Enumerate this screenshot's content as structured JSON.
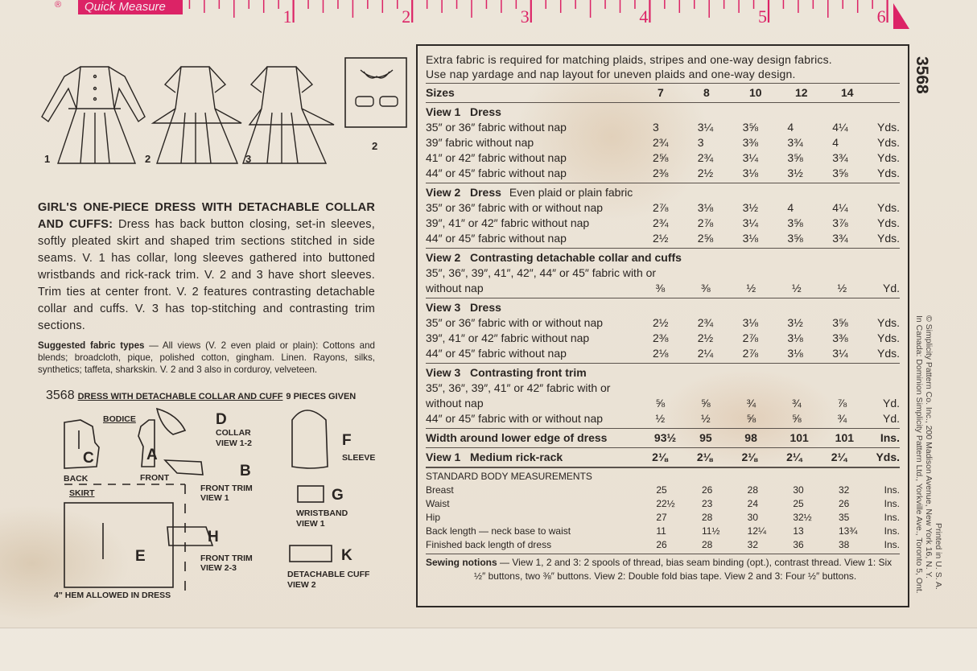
{
  "ruler": {
    "label": "Quick Measure",
    "registered": "®",
    "inches": [
      "1",
      "2",
      "3",
      "4",
      "5",
      "6"
    ],
    "color": "#dc2366"
  },
  "views": {
    "numbers": [
      "1",
      "2",
      "3"
    ],
    "inset_number": "2"
  },
  "description": {
    "title": "GIRL'S ONE-PIECE DRESS WITH DETACHABLE COLLAR AND CUFFS:",
    "body": "Dress has back button closing, set-in sleeves, softly pleated skirt and shaped trim sections stitched in side seams. V. 1 has collar, long sleeves gathered into buttoned wristbands and rick-rack trim. V. 2 and 3 have short sleeves. Trim ties at center front. V. 2 features contrasting detachable collar and cuffs. V. 3 has top-stitching and contrasting trim sections."
  },
  "fabrics": {
    "title": "Suggested fabric types",
    "body": "— All views (V. 2 even plaid or plain): Cottons and blends; broadcloth, pique, polished cotton, gingham. Linen. Rayons, silks, synthetics; taffeta, sharkskin. V. 2 and 3 also in corduroy, velveteen."
  },
  "pieces": {
    "number": "3568",
    "title": "DRESS WITH DETACHABLE COLLAR AND CUFF",
    "count": "9 PIECES GIVEN",
    "bodice": "BODICE",
    "back": "BACK",
    "front": "FRONT",
    "skirt": "SKIRT",
    "hem": "4\" HEM ALLOWED IN DRESS",
    "items": [
      {
        "letter": "C"
      },
      {
        "letter": "A"
      },
      {
        "letter": "E"
      },
      {
        "letter": "D",
        "name": "COLLAR",
        "view": "VIEW 1-2"
      },
      {
        "letter": "B",
        "name": "FRONT TRIM",
        "view": "VIEW 1"
      },
      {
        "letter": "H",
        "name": "FRONT TRIM",
        "view": "VIEW 2-3"
      },
      {
        "letter": "F",
        "name": "SLEEVE"
      },
      {
        "letter": "G",
        "name": "WRISTBAND",
        "view": "VIEW 1"
      },
      {
        "letter": "K",
        "name": "DETACHABLE CUFF",
        "view": "VIEW 2"
      }
    ]
  },
  "chart_header": {
    "line1": "Extra fabric is required for matching plaids, stripes and one-way design fabrics.",
    "line2": "Use nap yardage and nap layout for uneven plaids and one-way design."
  },
  "table": {
    "sizes_label": "Sizes",
    "sizes": [
      "7",
      "8",
      "10",
      "12",
      "14"
    ],
    "sections": [
      {
        "title": "View 1   Dress",
        "rows": [
          {
            "label": "35″ or 36″ fabric without nap",
            "values": [
              "3",
              "3¼",
              "3⅝",
              "4",
              "4¼"
            ],
            "unit": "Yds."
          },
          {
            "label": "39″ fabric without nap",
            "values": [
              "2¾",
              "3",
              "3⅜",
              "3¾",
              "4"
            ],
            "unit": "Yds."
          },
          {
            "label": "41″ or 42″ fabric without nap",
            "values": [
              "2⅝",
              "2¾",
              "3¼",
              "3⅝",
              "3¾"
            ],
            "unit": "Yds."
          },
          {
            "label": "44″ or 45″ fabric without nap",
            "values": [
              "2⅜",
              "2½",
              "3⅛",
              "3½",
              "3⅝"
            ],
            "unit": "Yds."
          }
        ]
      },
      {
        "title": "View 2   Dress",
        "subtitle": "Even plaid or plain fabric",
        "rows": [
          {
            "label": "35″ or 36″ fabric with or without nap",
            "values": [
              "2⅞",
              "3⅛",
              "3½",
              "4",
              "4¼"
            ],
            "unit": "Yds."
          },
          {
            "label": "39″, 41″ or 42″ fabric without nap",
            "values": [
              "2¾",
              "2⅞",
              "3¼",
              "3⅝",
              "3⅞"
            ],
            "unit": "Yds."
          },
          {
            "label": "44″ or 45″ fabric without nap",
            "values": [
              "2½",
              "2⅝",
              "3⅛",
              "3⅝",
              "3¾"
            ],
            "unit": "Yds."
          }
        ]
      },
      {
        "title": "View 2   Contrasting detachable collar and cuffs",
        "pre": "35″, 36″, 39″, 41″, 42″, 44″ or 45″ fabric with or",
        "rows": [
          {
            "label": "without nap",
            "values": [
              "⅜",
              "⅜",
              "½",
              "½",
              "½"
            ],
            "unit": "Yd."
          }
        ]
      },
      {
        "title": "View 3   Dress",
        "rows": [
          {
            "label": "35″ or 36″ fabric with or without nap",
            "values": [
              "2½",
              "2¾",
              "3⅛",
              "3½",
              "3⅝"
            ],
            "unit": "Yds."
          },
          {
            "label": "39″, 41″ or 42″ fabric without nap",
            "values": [
              "2⅜",
              "2½",
              "2⅞",
              "3⅛",
              "3⅜"
            ],
            "unit": "Yds."
          },
          {
            "label": "44″ or 45″ fabric without nap",
            "values": [
              "2⅛",
              "2¼",
              "2⅞",
              "3⅛",
              "3¼"
            ],
            "unit": "Yds."
          }
        ]
      },
      {
        "title": "View 3   Contrasting front trim",
        "pre": "35″, 36″, 39″, 41″ or 42″ fabric with or",
        "rows": [
          {
            "label": "without nap",
            "values": [
              "⅝",
              "⅝",
              "¾",
              "¾",
              "⅞"
            ],
            "unit": "Yd."
          },
          {
            "label": "44″ or 45″ fabric with or without nap",
            "values": [
              "½",
              "½",
              "⅝",
              "⅝",
              "¾"
            ],
            "unit": "Yd."
          }
        ]
      }
    ],
    "width_row": {
      "label": "Width around lower edge of dress",
      "values": [
        "93½",
        "95",
        "98",
        "101",
        "101"
      ],
      "unit": "Ins."
    },
    "rickrack_row": {
      "label": "View 1   Medium rick-rack",
      "values": [
        "2⅛",
        "2⅛",
        "2⅛",
        "2¼",
        "2¼"
      ],
      "unit": "Yds."
    },
    "body": {
      "title": "STANDARD BODY MEASUREMENTS",
      "rows": [
        {
          "label": "Breast",
          "values": [
            "25",
            "26",
            "28",
            "30",
            "32"
          ],
          "unit": "Ins."
        },
        {
          "label": "Waist",
          "values": [
            "22½",
            "23",
            "24",
            "25",
            "26"
          ],
          "unit": "Ins."
        },
        {
          "label": "Hip",
          "values": [
            "27",
            "28",
            "30",
            "32½",
            "35"
          ],
          "unit": "Ins."
        },
        {
          "label": "Back length — neck base to waist",
          "values": [
            "11",
            "11½",
            "12¼",
            "13",
            "13¾"
          ],
          "unit": "Ins."
        },
        {
          "label": "Finished back length of dress",
          "values": [
            "26",
            "28",
            "32",
            "36",
            "38"
          ],
          "unit": "Ins."
        }
      ]
    },
    "notions": {
      "title": "Sewing notions",
      "body": "— View 1, 2 and 3: 2 spools of thread, bias seam binding (opt.), contrast thread. View 1: Six ½″ buttons, two ⅜″ buttons. View 2: Double fold bias tape. View 2 and 3: Four ½″ buttons."
    }
  },
  "side": {
    "pattern_number": "3568",
    "copyright": "© Simplicity Pattern Co. Inc., 200 Madison Avenue, New York 16, N. Y.",
    "canada": "In Canada: Dominion Simplicity Pattern Ltd., Yorkville Ave., Toronto 5, Ont.",
    "printed": "Printed in U. S. A."
  }
}
